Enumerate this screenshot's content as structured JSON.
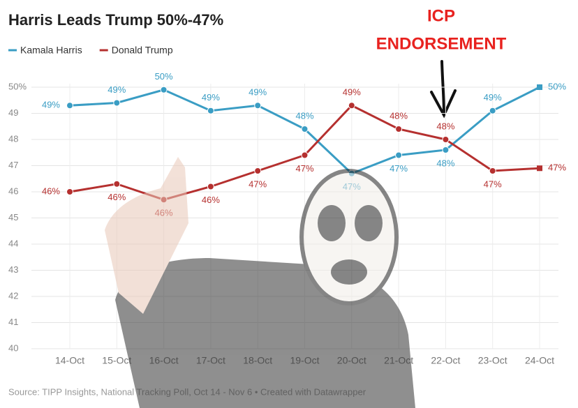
{
  "chart_data": {
    "type": "line",
    "title": "Harris Leads Trump 50%-47%",
    "annotation": [
      "ICP",
      "ENDORSEMENT"
    ],
    "source": "Source: TIPP Insights, National Tracking Poll, Oct 14 - Nov 6 • Created with Datawrapper",
    "categories": [
      "14-Oct",
      "15-Oct",
      "16-Oct",
      "17-Oct",
      "18-Oct",
      "19-Oct",
      "20-Oct",
      "21-Oct",
      "22-Oct",
      "23-Oct",
      "24-Oct"
    ],
    "series": [
      {
        "name": "Kamala Harris",
        "color": "#3a9dc4",
        "values": [
          49.3,
          49.4,
          49.9,
          49.1,
          49.3,
          48.4,
          46.7,
          47.4,
          47.6,
          49.1,
          50.0
        ],
        "value_labels": [
          "49%",
          "49%",
          "50%",
          "49%",
          "49%",
          "48%",
          "47%",
          "47%",
          "48%",
          "49%",
          "50%"
        ]
      },
      {
        "name": "Donald Trump",
        "color": "#b5302f",
        "values": [
          46.0,
          46.3,
          45.7,
          46.2,
          46.8,
          47.4,
          49.3,
          48.4,
          48.0,
          46.8,
          46.9
        ],
        "value_labels": [
          "46%",
          "46%",
          "46%",
          "46%",
          "47%",
          "47%",
          "49%",
          "48%",
          "48%",
          "47%",
          "47%"
        ]
      }
    ],
    "ylim": [
      40,
      50
    ],
    "yticks": [
      40,
      41,
      42,
      43,
      44,
      45,
      46,
      47,
      48,
      49,
      {
        "value": 50,
        "label": "50%"
      }
    ],
    "grid": true
  }
}
